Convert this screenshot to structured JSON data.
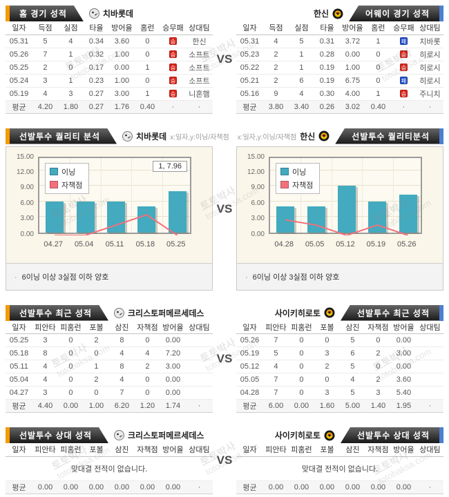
{
  "meta": {
    "vs": "VS"
  },
  "watermark": {
    "kor": "토토박사",
    "eng": "totobaksa.com"
  },
  "colors": {
    "accent_orange": "#F59A00",
    "accent_blue": "#4D7FD0",
    "banner_dark": "#2A2A2A",
    "win_red": "#D8281E",
    "loss_blue": "#2450C8",
    "bar_teal": "#43AABF",
    "line_pink": "#F2707B",
    "chart_bg": "#FAF6E9"
  },
  "sections": {
    "s1": {
      "left": {
        "banner": "홈 경기 성적",
        "team": "치바롯데",
        "table": {
          "badge_col": 6,
          "columns": [
            "일자",
            "득점",
            "실점",
            "타율",
            "방어율",
            "홈런",
            "승무패",
            "상대팀"
          ],
          "rows": [
            {
              "cells": [
                "05.31",
                "5",
                "4",
                "0.34",
                "3.60",
                "0",
                "",
                "한신"
              ],
              "badge": "승"
            },
            {
              "cells": [
                "05.26",
                "7",
                "1",
                "0.32",
                "1.00",
                "0",
                "",
                "소프트"
              ],
              "badge": "승"
            },
            {
              "cells": [
                "05.25",
                "2",
                "0",
                "0.17",
                "0.00",
                "1",
                "",
                "소프트"
              ],
              "badge": "승"
            },
            {
              "cells": [
                "05.24",
                "3",
                "1",
                "0.23",
                "1.00",
                "0",
                "",
                "소프트"
              ],
              "badge": "승"
            },
            {
              "cells": [
                "05.19",
                "4",
                "3",
                "0.27",
                "3.00",
                "1",
                "",
                "니혼햄"
              ],
              "badge": "승"
            }
          ],
          "avg": [
            "평균",
            "4.20",
            "1.80",
            "0.27",
            "1.76",
            "0.40",
            "·",
            "·"
          ]
        }
      },
      "right": {
        "banner": "어웨이 경기 성적",
        "team": "한신",
        "table": {
          "badge_col": 6,
          "columns": [
            "일자",
            "득점",
            "실점",
            "타율",
            "방어율",
            "홈런",
            "승무패",
            "상대팀"
          ],
          "rows": [
            {
              "cells": [
                "05.31",
                "4",
                "5",
                "0.31",
                "3.72",
                "1",
                "",
                "치바롯"
              ],
              "badge": "패"
            },
            {
              "cells": [
                "05.23",
                "2",
                "1",
                "0.28",
                "0.00",
                "0",
                "",
                "히로시"
              ],
              "badge": "승"
            },
            {
              "cells": [
                "05.22",
                "2",
                "1",
                "0.19",
                "1.00",
                "0",
                "",
                "히로시"
              ],
              "badge": "승"
            },
            {
              "cells": [
                "05.21",
                "2",
                "6",
                "0.19",
                "6.75",
                "0",
                "",
                "히로시"
              ],
              "badge": "패"
            },
            {
              "cells": [
                "05.16",
                "9",
                "4",
                "0.30",
                "4.00",
                "1",
                "",
                "주니치"
              ],
              "badge": "승"
            }
          ],
          "avg": [
            "평균",
            "3.80",
            "3.40",
            "0.26",
            "3.02",
            "0.40",
            "·",
            "·"
          ]
        }
      }
    },
    "s2": {
      "left": {
        "banner": "선발투수 퀄리티 분석",
        "team": "치바롯데",
        "axis_note": "x:일자,y:이닝/자책점",
        "note_bullet": "·",
        "note": "6이닝 이상 3실점 이하 양호"
      },
      "right": {
        "banner": "선발투수 퀄리티분석",
        "team": "한신",
        "axis_note": "x:일자,y:이닝/자책점",
        "note_bullet": "·",
        "note": "6이닝 이상 3실점 이하 양호"
      }
    },
    "s3": {
      "left": {
        "banner": "선발투수 최근 성적",
        "team": "크리스토퍼메르세데스",
        "table": {
          "columns": [
            "일자",
            "피안타",
            "피홈런",
            "포볼",
            "삼진",
            "자책점",
            "방어율",
            "상대팀"
          ],
          "rows": [
            {
              "cells": [
                "05.25",
                "3",
                "0",
                "2",
                "8",
                "0",
                "0.00",
                ""
              ]
            },
            {
              "cells": [
                "05.18",
                "8",
                "0",
                "0",
                "4",
                "4",
                "7.20",
                ""
              ]
            },
            {
              "cells": [
                "05.11",
                "4",
                "0",
                "1",
                "8",
                "2",
                "3.00",
                ""
              ]
            },
            {
              "cells": [
                "05.04",
                "4",
                "0",
                "2",
                "4",
                "0",
                "0.00",
                ""
              ]
            },
            {
              "cells": [
                "04.27",
                "3",
                "0",
                "0",
                "7",
                "0",
                "0.00",
                ""
              ]
            }
          ],
          "avg": [
            "평균",
            "4.40",
            "0.00",
            "1.00",
            "6.20",
            "1.20",
            "1.74",
            "·"
          ]
        }
      },
      "right": {
        "banner": "선발투수 최근 성적",
        "team": "사이키히로토",
        "table": {
          "columns": [
            "일자",
            "피안타",
            "피홈런",
            "포볼",
            "삼진",
            "자책점",
            "방어율",
            "상대팀"
          ],
          "rows": [
            {
              "cells": [
                "05.26",
                "7",
                "0",
                "0",
                "5",
                "0",
                "0.00",
                ""
              ]
            },
            {
              "cells": [
                "05.19",
                "5",
                "0",
                "3",
                "6",
                "2",
                "3.00",
                ""
              ]
            },
            {
              "cells": [
                "05.12",
                "4",
                "0",
                "2",
                "5",
                "0",
                "0.00",
                ""
              ]
            },
            {
              "cells": [
                "05.05",
                "7",
                "0",
                "0",
                "4",
                "2",
                "3.60",
                ""
              ]
            },
            {
              "cells": [
                "04.28",
                "7",
                "0",
                "3",
                "5",
                "3",
                "5.40",
                ""
              ]
            }
          ],
          "avg": [
            "평균",
            "6.00",
            "0.00",
            "1.60",
            "5.00",
            "1.40",
            "1.95",
            "·"
          ]
        }
      }
    },
    "s4": {
      "left": {
        "banner": "선발투수 상대 성적",
        "team": "크리스토퍼메르세데스",
        "table": {
          "columns": [
            "일자",
            "피안타",
            "피홈런",
            "포볼",
            "삼진",
            "자책점",
            "방어율",
            "상대팀"
          ],
          "message": "맞대결 전적이 없습니다.",
          "rows": [],
          "avg": [
            "평균",
            "0.00",
            "0.00",
            "0.00",
            "0.00",
            "0.00",
            "0.00",
            "·"
          ]
        }
      },
      "right": {
        "banner": "선발투수 상대 성적",
        "team": "사이키히로토",
        "table": {
          "columns": [
            "일자",
            "피안타",
            "피홈런",
            "포볼",
            "삼진",
            "자책점",
            "방어율",
            "상대팀"
          ],
          "message": "맞대결 전적이 없습니다.",
          "rows": [],
          "avg": [
            "평균",
            "0.00",
            "0.00",
            "0.00",
            "0.00",
            "0.00",
            "0.00",
            "·"
          ]
        }
      }
    }
  },
  "chart_data": [
    {
      "type": "bar",
      "title": "선발투수 퀄리티 분석 — 치바롯데 (크리스토퍼메르세데스)",
      "xlabel": "일자",
      "ylabel": "이닝/자책점",
      "categories": [
        "04.27",
        "05.04",
        "05.11",
        "05.18",
        "05.25"
      ],
      "series": [
        {
          "name": "이닝",
          "type": "bar",
          "values": [
            6,
            6,
            6,
            5,
            7.96
          ]
        },
        {
          "name": "자책점",
          "type": "line",
          "values": [
            0,
            0,
            2,
            4,
            0
          ]
        }
      ],
      "ylim": [
        0,
        15
      ],
      "yticks": [
        "15.00",
        "12.00",
        "9.00",
        "6.00",
        "3.00",
        "0.00"
      ],
      "grid": true,
      "legend_position": "top-left",
      "tooltip": "1, 7.96"
    },
    {
      "type": "bar",
      "title": "선발투수 퀄리티분석 — 한신 (사이키히로토)",
      "xlabel": "일자",
      "ylabel": "이닝/자책점",
      "categories": [
        "04.28",
        "05.05",
        "05.12",
        "05.19",
        "05.26"
      ],
      "series": [
        {
          "name": "이닝",
          "type": "bar",
          "values": [
            5,
            5,
            9,
            6,
            7.3
          ]
        },
        {
          "name": "자책점",
          "type": "line",
          "values": [
            3,
            2,
            0,
            2,
            0
          ]
        }
      ],
      "ylim": [
        0,
        15
      ],
      "yticks": [
        "15.00",
        "12.00",
        "9.00",
        "6.00",
        "3.00",
        "0.00"
      ],
      "grid": true,
      "legend_position": "top-left",
      "tooltip": null
    }
  ]
}
